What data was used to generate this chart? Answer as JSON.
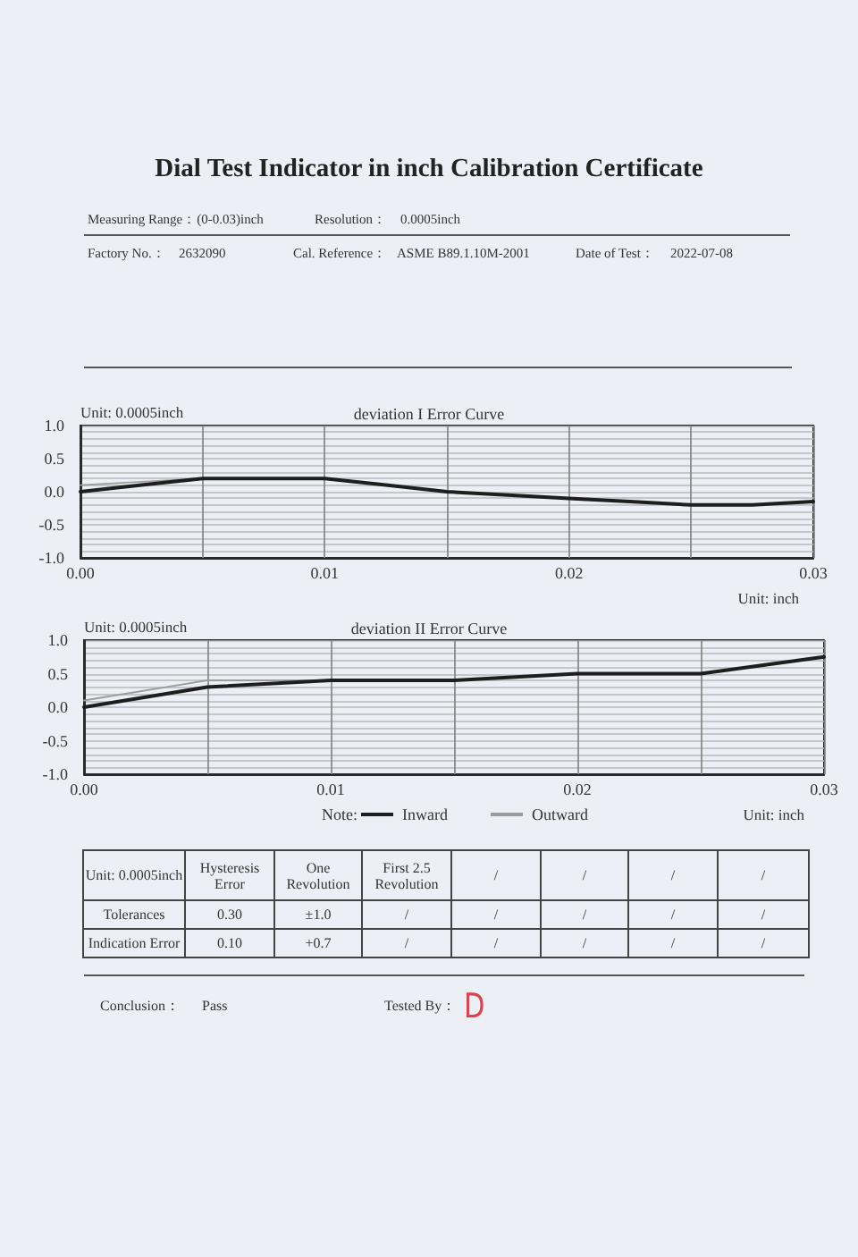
{
  "chart_data": [
    {
      "type": "other",
      "title": "Dial Test Indicator in inch Calibration Certificate",
      "annotations": [
        "Measuring Range：(0-0.03)inch",
        "Resolution：",
        "0.0005inch",
        "Factory No.：",
        "2632090",
        "Cal. Reference：",
        "ASME B89.1.10M-2001",
        "Date of Test：",
        "2022-07-08"
      ]
    },
    {
      "type": "line",
      "title": "deviation I Error Curve",
      "xlabel": "Unit: inch",
      "ylabel": "Unit: 0.0005inch",
      "x": [
        0,
        0.0025,
        0.005,
        0.0075,
        0.01,
        0.0125,
        0.015,
        0.0175,
        0.02,
        0.0225,
        0.025,
        0.0275,
        0.03
      ],
      "series": [
        {
          "color": "#1e1e1e",
          "values": [
            0.0,
            0.1,
            0.2,
            0.2,
            0.2,
            0.1,
            0.0,
            -0.05,
            -0.1,
            -0.15,
            -0.2,
            -0.2,
            -0.15
          ]
        },
        {
          "color": "#9c9c9c",
          "values": [
            0.1,
            0.15,
            0.2,
            null,
            null,
            null,
            null,
            null,
            null,
            null,
            null,
            null,
            null
          ]
        }
      ],
      "xlim": [
        0,
        0.03
      ],
      "xticks": [
        {
          "value": 0,
          "label": "0.00"
        },
        {
          "value": 0.005,
          "label": null
        },
        0.01,
        {
          "value": 0.015,
          "label": null
        },
        0.02,
        {
          "value": 0.025,
          "label": null
        },
        0.03
      ],
      "ylim": [
        -1,
        1
      ],
      "yticks": [
        {
          "value": -1,
          "label": "-1.0"
        },
        {
          "value": -0.9,
          "label": null
        },
        {
          "value": -0.8,
          "label": null
        },
        {
          "value": -0.7,
          "label": null
        },
        {
          "value": -0.6,
          "label": null
        },
        {
          "value": -0.5,
          "label": "-0.5"
        },
        {
          "value": -0.4,
          "label": null
        },
        {
          "value": -0.3,
          "label": null
        },
        {
          "value": -0.2,
          "label": null
        },
        {
          "value": -0.1,
          "label": null
        },
        {
          "value": 0,
          "label": "0.0"
        },
        {
          "value": 0.1,
          "label": null
        },
        {
          "value": 0.2,
          "label": null
        },
        {
          "value": 0.3,
          "label": null
        },
        {
          "value": 0.4,
          "label": null
        },
        {
          "value": 0.5,
          "label": "0.5"
        },
        {
          "value": 0.6,
          "label": null
        },
        {
          "value": 0.7,
          "label": null
        },
        {
          "value": 0.8,
          "label": null
        },
        {
          "value": 0.9,
          "label": null
        },
        {
          "value": 1,
          "label": "1.0"
        }
      ],
      "grid": true,
      "line_style": "solid"
    },
    {
      "type": "line",
      "title": "deviation II Error Curve",
      "xlabel": "Unit: inch",
      "ylabel": "Unit: 0.0005inch",
      "legend_title": "Note:",
      "x": [
        0,
        0.005,
        0.01,
        0.015,
        0.02,
        0.025,
        0.03
      ],
      "series": [
        {
          "name": "Inward",
          "color": "#1e1e1e",
          "values": [
            0.0,
            0.3,
            0.4,
            0.4,
            0.5,
            0.5,
            0.75
          ]
        },
        {
          "name": "Outward",
          "color": "#9c9c9c",
          "values": [
            0.1,
            0.4,
            0.4,
            null,
            null,
            null,
            null
          ]
        }
      ],
      "xlim": [
        0,
        0.03
      ],
      "xticks": [
        {
          "value": 0,
          "label": "0.00"
        },
        {
          "value": 0.005,
          "label": null
        },
        0.01,
        {
          "value": 0.015,
          "label": null
        },
        0.02,
        {
          "value": 0.025,
          "label": null
        },
        0.03
      ],
      "ylim": [
        -1,
        1
      ],
      "yticks": [
        {
          "value": -1,
          "label": "-1.0"
        },
        {
          "value": -0.9,
          "label": null
        },
        {
          "value": -0.8,
          "label": null
        },
        {
          "value": -0.7,
          "label": null
        },
        {
          "value": -0.6,
          "label": null
        },
        {
          "value": -0.5,
          "label": "-0.5"
        },
        {
          "value": -0.4,
          "label": null
        },
        {
          "value": -0.3,
          "label": null
        },
        {
          "value": -0.2,
          "label": null
        },
        {
          "value": -0.1,
          "label": null
        },
        {
          "value": 0,
          "label": "0.0"
        },
        {
          "value": 0.1,
          "label": null
        },
        {
          "value": 0.2,
          "label": null
        },
        {
          "value": 0.3,
          "label": null
        },
        {
          "value": 0.4,
          "label": null
        },
        {
          "value": 0.5,
          "label": "0.5"
        },
        {
          "value": 0.6,
          "label": null
        },
        {
          "value": 0.7,
          "label": null
        },
        {
          "value": 0.8,
          "label": null
        },
        {
          "value": 0.9,
          "label": null
        },
        {
          "value": 1,
          "label": "1.0"
        }
      ],
      "grid": true,
      "legend": "bottom",
      "line_style": "solid"
    },
    {
      "type": "other",
      "categories": [
        "Unit: 0.0005inch",
        "Hysteresis Error",
        "One Revolution",
        "First 2.5 Revolution",
        "/",
        "/",
        "/",
        "/"
      ],
      "y_categories": [
        "Tolerances",
        "Indication Error"
      ],
      "annotations": [
        "0.30",
        "±1.0",
        "/",
        "/",
        "/",
        "/",
        "/",
        "0.10",
        "+0.7",
        "/",
        "/",
        "/",
        "/",
        "/",
        "Conclusion：",
        "Pass",
        "Tested By：",
        "D"
      ]
    }
  ]
}
